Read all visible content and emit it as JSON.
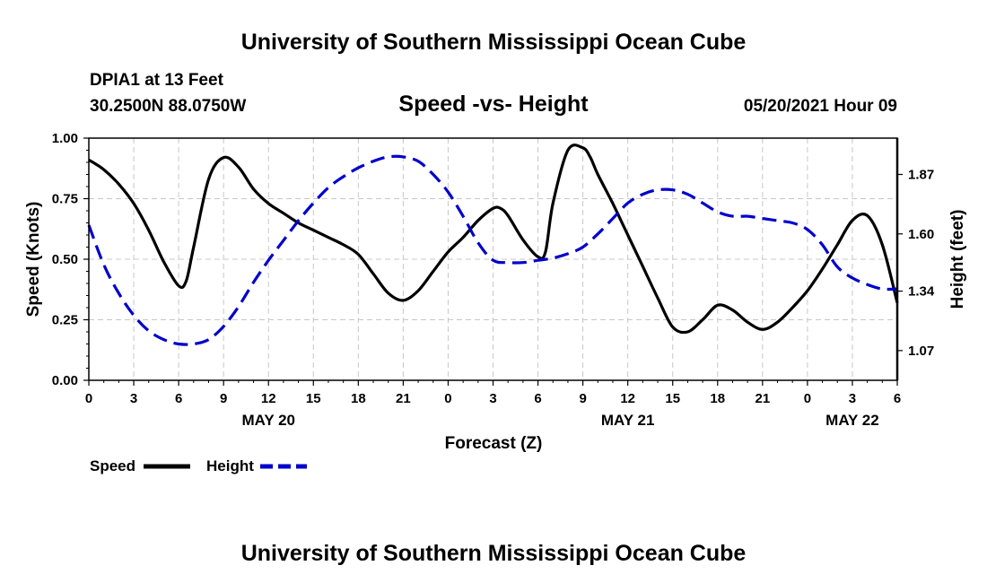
{
  "header": {
    "title": "University of Southern Mississippi Ocean Cube",
    "station": "DPIA1 at 13 Feet",
    "coords": "30.2500N  88.0750W",
    "chart_title": "Speed -vs- Height",
    "issued": "05/20/2021 Hour 09"
  },
  "footer": {
    "title": "University of Southern Mississippi Ocean Cube"
  },
  "legend": {
    "speed_label": "Speed",
    "height_label": "Height"
  },
  "chart_data": {
    "type": "line",
    "title": "Speed -vs- Height",
    "xlabel": "Forecast (Z)",
    "ylabel_left": "Speed (Knots)",
    "ylabel_right": "Height (feet)",
    "x_unit": "hours from 00Z May 20",
    "x_range": [
      0,
      54
    ],
    "x_ticks": [
      {
        "x": 0,
        "label": "0"
      },
      {
        "x": 3,
        "label": "3"
      },
      {
        "x": 6,
        "label": "6"
      },
      {
        "x": 9,
        "label": "9"
      },
      {
        "x": 12,
        "label": "12"
      },
      {
        "x": 15,
        "label": "15"
      },
      {
        "x": 18,
        "label": "18"
      },
      {
        "x": 21,
        "label": "21"
      },
      {
        "x": 24,
        "label": "0"
      },
      {
        "x": 27,
        "label": "3"
      },
      {
        "x": 30,
        "label": "6"
      },
      {
        "x": 33,
        "label": "9"
      },
      {
        "x": 36,
        "label": "12"
      },
      {
        "x": 39,
        "label": "15"
      },
      {
        "x": 42,
        "label": "18"
      },
      {
        "x": 45,
        "label": "21"
      },
      {
        "x": 48,
        "label": "0"
      },
      {
        "x": 51,
        "label": "3"
      },
      {
        "x": 54,
        "label": "6"
      }
    ],
    "date_labels": [
      {
        "x": 12,
        "label": "MAY 20"
      },
      {
        "x": 36,
        "label": "MAY 21"
      },
      {
        "x": 51,
        "label": "MAY 22"
      }
    ],
    "ylim_left": [
      0,
      1
    ],
    "yticks_left": [
      "0.00",
      "0.25",
      "0.50",
      "0.75",
      "1.00"
    ],
    "ylim_right": [
      0.935,
      2.035
    ],
    "yticks_right": [
      "1.07",
      "1.34",
      "1.60",
      "1.87"
    ],
    "grid": true,
    "legend_position": "bottom-left",
    "series": [
      {
        "name": "Speed",
        "axis": "left",
        "color": "#000000",
        "style": "solid",
        "x": [
          0,
          1,
          2,
          3,
          4,
          5,
          6,
          6.5,
          7,
          8,
          9,
          10,
          11,
          12,
          13,
          14,
          15,
          16,
          17,
          18,
          19,
          20,
          21,
          22,
          23,
          24,
          25,
          26,
          27,
          27.5,
          28,
          29,
          30,
          30.5,
          31,
          32,
          33,
          33.5,
          34,
          35,
          36,
          37,
          38,
          39,
          40,
          41,
          42,
          43,
          44,
          45,
          46,
          47,
          48,
          49,
          50,
          51,
          52,
          53,
          54
        ],
        "values": [
          0.91,
          0.87,
          0.81,
          0.73,
          0.62,
          0.49,
          0.39,
          0.41,
          0.55,
          0.83,
          0.92,
          0.88,
          0.79,
          0.73,
          0.69,
          0.65,
          0.62,
          0.59,
          0.56,
          0.52,
          0.44,
          0.36,
          0.33,
          0.37,
          0.45,
          0.53,
          0.59,
          0.66,
          0.71,
          0.71,
          0.68,
          0.58,
          0.51,
          0.53,
          0.73,
          0.95,
          0.96,
          0.92,
          0.85,
          0.73,
          0.6,
          0.47,
          0.34,
          0.22,
          0.2,
          0.25,
          0.31,
          0.29,
          0.24,
          0.21,
          0.24,
          0.3,
          0.37,
          0.46,
          0.56,
          0.66,
          0.68,
          0.56,
          0.32
        ]
      },
      {
        "name": "Height",
        "axis": "right",
        "color": "#0000cc",
        "style": "dashed",
        "x": [
          0,
          1,
          2,
          3,
          4,
          5,
          6,
          7,
          8,
          9,
          10,
          11,
          12,
          13,
          14,
          15,
          16,
          17,
          18,
          19,
          20,
          21,
          22,
          23,
          24,
          25,
          26,
          27,
          28,
          29,
          30,
          31,
          32,
          33,
          34,
          35,
          36,
          37,
          38,
          39,
          40,
          41,
          42,
          43,
          44,
          45,
          46,
          47,
          48,
          49,
          50,
          51,
          52,
          53,
          54
        ],
        "values": [
          1.64,
          1.46,
          1.33,
          1.23,
          1.16,
          1.12,
          1.1,
          1.1,
          1.12,
          1.18,
          1.27,
          1.38,
          1.48,
          1.57,
          1.66,
          1.74,
          1.81,
          1.86,
          1.9,
          1.93,
          1.95,
          1.95,
          1.93,
          1.87,
          1.79,
          1.68,
          1.56,
          1.48,
          1.47,
          1.47,
          1.48,
          1.49,
          1.51,
          1.54,
          1.6,
          1.67,
          1.74,
          1.78,
          1.8,
          1.8,
          1.78,
          1.74,
          1.7,
          1.68,
          1.68,
          1.67,
          1.66,
          1.65,
          1.62,
          1.55,
          1.45,
          1.4,
          1.37,
          1.35,
          1.35
        ]
      }
    ]
  }
}
